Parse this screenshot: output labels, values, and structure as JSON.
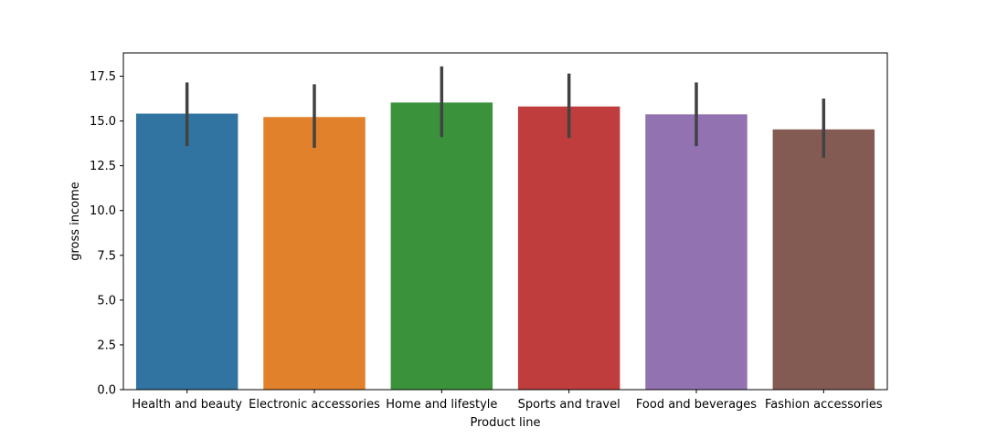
{
  "chart_data": {
    "type": "bar",
    "title": "",
    "xlabel": "Product line",
    "ylabel": "gross income",
    "ylim": [
      0,
      18.8
    ],
    "yticks": [
      0.0,
      2.5,
      5.0,
      7.5,
      10.0,
      12.5,
      15.0,
      17.5
    ],
    "ytick_labels": [
      "0.0",
      "2.5",
      "5.0",
      "7.5",
      "10.0",
      "12.5",
      "15.0",
      "17.5"
    ],
    "grid": false,
    "legend": "none",
    "categories": [
      "Health and beauty",
      "Electronic accessories",
      "Home and lifestyle",
      "Sports and travel",
      "Food and beverages",
      "Fashion accessories"
    ],
    "values": [
      15.41,
      15.22,
      16.03,
      15.81,
      15.37,
      14.53
    ],
    "error_low": [
      13.6,
      13.5,
      14.1,
      14.05,
      13.6,
      12.95
    ],
    "error_high": [
      17.15,
      17.05,
      18.05,
      17.65,
      17.15,
      16.25
    ],
    "colors": [
      "#3274a1",
      "#e1812c",
      "#3a923a",
      "#c03d3e",
      "#9372b2",
      "#845b53"
    ],
    "error_color": "#424242"
  }
}
